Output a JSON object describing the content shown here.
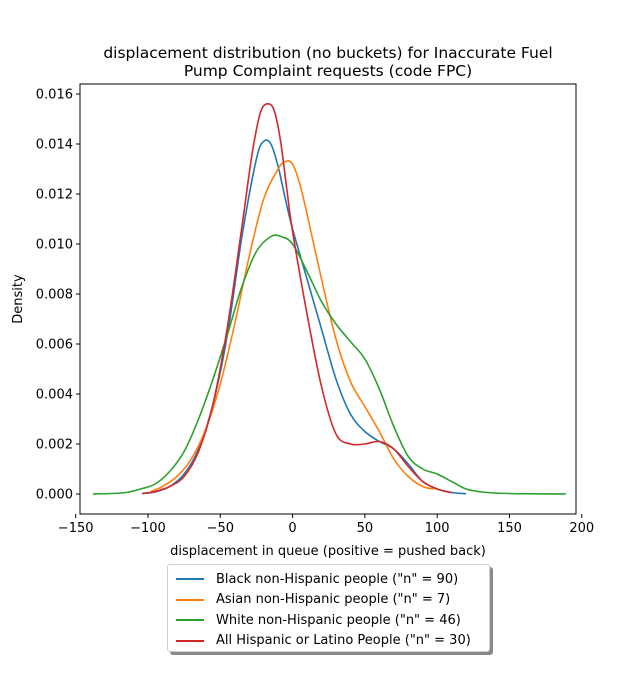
{
  "chart_data": {
    "type": "line",
    "title": "displacement distribution (no buckets)  for Inaccurate Fuel Pump Complaint requests (code FPC)",
    "title_lines": [
      "displacement distribution (no buckets)  for Inaccurate Fuel",
      "Pump Complaint requests (code FPC)"
    ],
    "xlabel": "displacement in queue (positive = pushed back)",
    "ylabel": "Density",
    "xlim": [
      -147,
      196
    ],
    "ylim": [
      -0.0008,
      0.0164
    ],
    "xticks": [
      -150,
      -100,
      -50,
      0,
      50,
      100,
      150,
      200
    ],
    "xtick_labels": [
      "−150",
      "−100",
      "−50",
      "0",
      "50",
      "100",
      "150",
      "200"
    ],
    "yticks": [
      0.0,
      0.002,
      0.004,
      0.006,
      0.008,
      0.01,
      0.012,
      0.014,
      0.016
    ],
    "ytick_labels": [
      "0.000",
      "0.002",
      "0.004",
      "0.006",
      "0.008",
      "0.010",
      "0.012",
      "0.014",
      "0.016"
    ],
    "grid": false,
    "legend_position": "below plot, centered",
    "series": [
      {
        "name": "Black non-Hispanic people (\"n\" = 90)",
        "color": "#1f77b4",
        "x": [
          -104,
          -95,
          -85,
          -75,
          -65,
          -55,
          -45,
          -35,
          -25,
          -20,
          -15,
          -10,
          -5,
          0,
          10,
          20,
          30,
          40,
          50,
          60,
          70,
          80,
          90,
          100,
          110,
          120
        ],
        "y": [
          2e-05,
          8e-05,
          0.0003,
          0.0008,
          0.0018,
          0.0036,
          0.0064,
          0.0103,
          0.0134,
          0.0141,
          0.014,
          0.0131,
          0.0118,
          0.0106,
          0.0086,
          0.0066,
          0.0046,
          0.0032,
          0.0025,
          0.0021,
          0.0018,
          0.0012,
          0.0005,
          0.0002,
          6e-05,
          1e-05
        ]
      },
      {
        "name": "Asian non-Hispanic people (\"n\" = 7)",
        "color": "#ff7f0e",
        "x": [
          -98,
          -90,
          -80,
          -70,
          -60,
          -50,
          -40,
          -30,
          -20,
          -10,
          -5,
          0,
          5,
          10,
          20,
          30,
          40,
          50,
          60,
          70,
          80,
          90,
          98
        ],
        "y": [
          0.0001,
          0.0003,
          0.0007,
          0.0014,
          0.0026,
          0.0044,
          0.0068,
          0.0095,
          0.0118,
          0.013,
          0.0133,
          0.0132,
          0.0124,
          0.0112,
          0.0086,
          0.0062,
          0.0045,
          0.0035,
          0.0025,
          0.0014,
          0.0007,
          0.0003,
          0.0002
        ]
      },
      {
        "name": "White non-Hispanic people (\"n\" = 46)",
        "color": "#2ca02c",
        "x": [
          -138,
          -125,
          -115,
          -105,
          -95,
          -85,
          -75,
          -65,
          -55,
          -45,
          -35,
          -25,
          -15,
          -8,
          0,
          10,
          20,
          30,
          40,
          50,
          60,
          70,
          80,
          90,
          100,
          110,
          120,
          130,
          140,
          150,
          160,
          175,
          189
        ],
        "y": [
          3e-06,
          2e-05,
          6e-05,
          0.0002,
          0.0004,
          0.0009,
          0.0017,
          0.003,
          0.0046,
          0.0064,
          0.0083,
          0.0097,
          0.0103,
          0.0103,
          0.01,
          0.0089,
          0.0077,
          0.0068,
          0.0061,
          0.0054,
          0.0042,
          0.0027,
          0.0015,
          0.001,
          0.0008,
          0.0005,
          0.0002,
          9e-05,
          4e-05,
          2e-05,
          1e-05,
          4e-06,
          1e-06
        ]
      },
      {
        "name": "All Hispanic or Latino People (\"n\" = 30)",
        "color": "#d62728",
        "x": [
          -104,
          -95,
          -85,
          -75,
          -65,
          -55,
          -45,
          -35,
          -28,
          -22,
          -16,
          -12,
          -8,
          -4,
          0,
          10,
          20,
          30,
          40,
          50,
          60,
          70,
          80,
          90,
          100,
          110
        ],
        "y": [
          2e-05,
          0.0001,
          0.0003,
          0.0007,
          0.0017,
          0.0036,
          0.0067,
          0.0107,
          0.0136,
          0.0153,
          0.0156,
          0.0152,
          0.014,
          0.0122,
          0.0105,
          0.0072,
          0.0043,
          0.0024,
          0.002,
          0.002,
          0.0021,
          0.0018,
          0.0011,
          0.0005,
          0.0002,
          5e-05
        ]
      }
    ]
  }
}
